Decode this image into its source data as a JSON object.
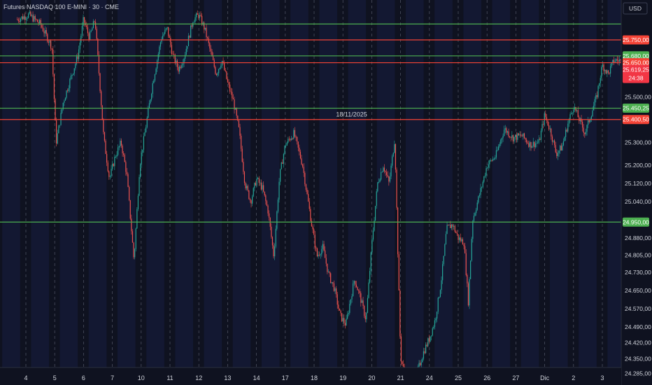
{
  "header": {
    "title": "Futures NASDAQ 100 E-MINI · 30 · CME"
  },
  "axis": {
    "currency_label": "USD"
  },
  "colors": {
    "background": "#0f1220",
    "session_band": "#141a36",
    "up": "#26a69a",
    "down": "#ef5350",
    "support": "#4caf50",
    "resistance": "#f44336",
    "price_badge": "#f23645",
    "axis_text": "#d1d4dc",
    "divider": "#8a8fa3"
  },
  "chart_data": {
    "type": "candlestick",
    "title": "Futures NASDAQ 100 E-MINI · 30 · CME",
    "ylim": [
      24250,
      25870
    ],
    "yticks": [
      25500,
      25300,
      25200,
      25120,
      25040,
      24880,
      24805,
      24730,
      24650,
      24570,
      24490,
      24420,
      24350,
      24285
    ],
    "ytick_labels": [
      "25.500,00",
      "25.300,00",
      "25.200,00",
      "25.120,00",
      "25.040,00",
      "24.880,00",
      "24.805,00",
      "24.730,00",
      "24.650,00",
      "24.570,00",
      "24.490,00",
      "24.420,00",
      "24.350,00",
      "24.285,00"
    ],
    "x_ticks": [
      {
        "label": "4",
        "day": 0
      },
      {
        "label": "5",
        "day": 1
      },
      {
        "label": "6",
        "day": 2
      },
      {
        "label": "7",
        "day": 3
      },
      {
        "label": "10",
        "day": 4
      },
      {
        "label": "11",
        "day": 5
      },
      {
        "label": "12",
        "day": 6
      },
      {
        "label": "13",
        "day": 7
      },
      {
        "label": "14",
        "day": 8
      },
      {
        "label": "17",
        "day": 9
      },
      {
        "label": "18",
        "day": 10
      },
      {
        "label": "19",
        "day": 11
      },
      {
        "label": "20",
        "day": 12
      },
      {
        "label": "21",
        "day": 13
      },
      {
        "label": "24",
        "day": 14
      },
      {
        "label": "25",
        "day": 15
      },
      {
        "label": "26",
        "day": 16
      },
      {
        "label": "27",
        "day": 17
      },
      {
        "label": "Dic",
        "day": 18
      },
      {
        "label": "2",
        "day": 19
      },
      {
        "label": "3",
        "day": 20
      }
    ],
    "horizontal_levels": [
      {
        "price": 25820.0,
        "kind": "support",
        "label": "",
        "badge": false
      },
      {
        "price": 25750.0,
        "kind": "resistance",
        "label": "25.750,00",
        "badge": true
      },
      {
        "price": 25680.0,
        "kind": "support",
        "label": "25.680,00",
        "badge": true
      },
      {
        "price": 25650.0,
        "kind": "resistance",
        "label": "25.650,00",
        "badge": true
      },
      {
        "price": 25450.25,
        "kind": "support",
        "label": "25.450,25",
        "badge": true
      },
      {
        "price": 25400.5,
        "kind": "resistance",
        "label": "25.400,50",
        "badge": true
      },
      {
        "price": 24950.0,
        "kind": "support",
        "label": "24.950,00",
        "badge": true
      }
    ],
    "annotation": {
      "text": "18/11/2025",
      "day": 11.3,
      "price": 25405
    },
    "last_price": {
      "value": 25619.25,
      "label": "25.619,25",
      "countdown": "24:38"
    },
    "price_path": [
      [
        -0.3,
        25840
      ],
      [
        0.1,
        25860
      ],
      [
        0.5,
        25820
      ],
      [
        0.9,
        25720
      ],
      [
        1.05,
        25300
      ],
      [
        1.3,
        25480
      ],
      [
        1.5,
        25560
      ],
      [
        1.8,
        25680
      ],
      [
        2.0,
        25840
      ],
      [
        2.2,
        25760
      ],
      [
        2.4,
        25840
      ],
      [
        2.7,
        25320
      ],
      [
        2.9,
        25140
      ],
      [
        3.1,
        25240
      ],
      [
        3.3,
        25300
      ],
      [
        3.5,
        25160
      ],
      [
        3.75,
        24780
      ],
      [
        3.95,
        25200
      ],
      [
        4.2,
        25400
      ],
      [
        4.4,
        25560
      ],
      [
        4.7,
        25760
      ],
      [
        4.9,
        25800
      ],
      [
        5.1,
        25680
      ],
      [
        5.3,
        25620
      ],
      [
        5.5,
        25680
      ],
      [
        5.8,
        25840
      ],
      [
        6.0,
        25860
      ],
      [
        6.2,
        25800
      ],
      [
        6.4,
        25700
      ],
      [
        6.6,
        25600
      ],
      [
        6.8,
        25660
      ],
      [
        7.0,
        25560
      ],
      [
        7.2,
        25480
      ],
      [
        7.4,
        25350
      ],
      [
        7.6,
        25120
      ],
      [
        7.8,
        25040
      ],
      [
        8.0,
        25140
      ],
      [
        8.2,
        25100
      ],
      [
        8.4,
        25000
      ],
      [
        8.6,
        24800
      ],
      [
        8.8,
        25150
      ],
      [
        9.0,
        25290
      ],
      [
        9.3,
        25340
      ],
      [
        9.6,
        25200
      ],
      [
        9.9,
        24950
      ],
      [
        10.1,
        24800
      ],
      [
        10.3,
        24840
      ],
      [
        10.5,
        24720
      ],
      [
        10.7,
        24660
      ],
      [
        10.9,
        24540
      ],
      [
        11.1,
        24500
      ],
      [
        11.4,
        24700
      ],
      [
        11.6,
        24620
      ],
      [
        11.8,
        24520
      ],
      [
        12.0,
        24850
      ],
      [
        12.2,
        25120
      ],
      [
        12.4,
        25200
      ],
      [
        12.6,
        25120
      ],
      [
        12.8,
        25320
      ],
      [
        13.0,
        24360
      ],
      [
        13.2,
        24250
      ],
      [
        13.4,
        24220
      ],
      [
        13.6,
        24300
      ],
      [
        13.8,
        24380
      ],
      [
        14.0,
        24440
      ],
      [
        14.2,
        24520
      ],
      [
        14.4,
        24680
      ],
      [
        14.6,
        24920
      ],
      [
        14.8,
        24940
      ],
      [
        15.0,
        24880
      ],
      [
        15.2,
        24860
      ],
      [
        15.35,
        24600
      ],
      [
        15.5,
        24960
      ],
      [
        15.8,
        25100
      ],
      [
        16.0,
        25200
      ],
      [
        16.3,
        25240
      ],
      [
        16.6,
        25360
      ],
      [
        16.9,
        25320
      ],
      [
        17.2,
        25330
      ],
      [
        17.5,
        25290
      ],
      [
        17.8,
        25300
      ],
      [
        18.0,
        25420
      ],
      [
        18.2,
        25350
      ],
      [
        18.4,
        25250
      ],
      [
        18.6,
        25280
      ],
      [
        18.8,
        25380
      ],
      [
        19.0,
        25460
      ],
      [
        19.2,
        25400
      ],
      [
        19.4,
        25340
      ],
      [
        19.6,
        25420
      ],
      [
        19.8,
        25500
      ],
      [
        20.0,
        25640
      ],
      [
        20.2,
        25600
      ],
      [
        20.4,
        25660
      ],
      [
        20.6,
        25660
      ],
      [
        20.8,
        25619
      ]
    ]
  }
}
